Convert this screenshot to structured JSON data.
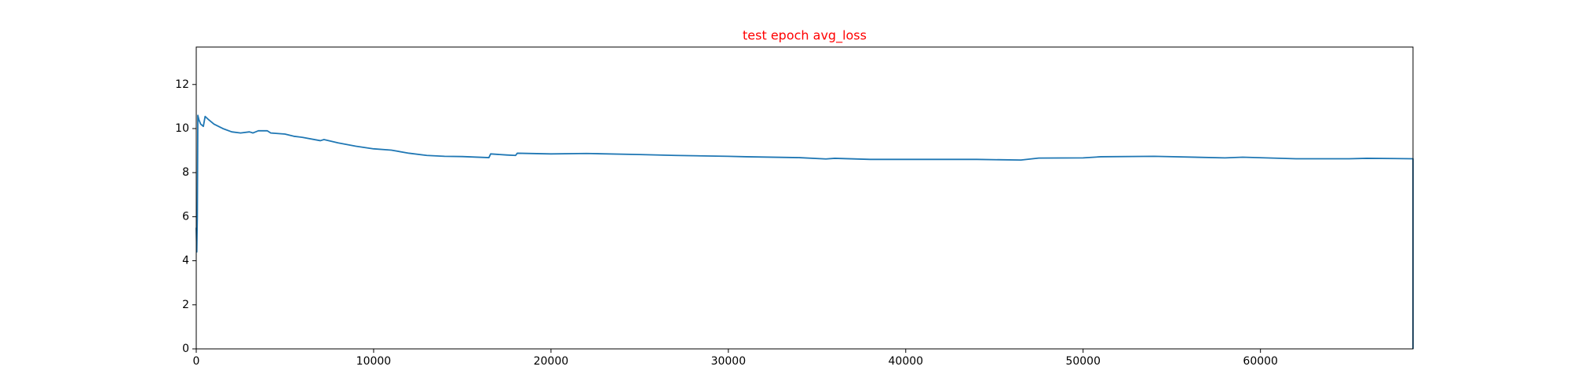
{
  "chart_data": {
    "type": "line",
    "title": "test epoch avg_loss",
    "title_color": "#ff0000",
    "color": "#1f77b4",
    "x": [
      0,
      30,
      60,
      90,
      150,
      250,
      400,
      500,
      700,
      1000,
      1500,
      2000,
      2500,
      3000,
      3200,
      3500,
      4000,
      4200,
      5000,
      5500,
      6000,
      7000,
      7200,
      8000,
      9000,
      10000,
      11000,
      12000,
      13000,
      14000,
      15000,
      16500,
      16600,
      17500,
      18000,
      18100,
      20000,
      22000,
      25000,
      27000,
      30000,
      31000,
      34000,
      35500,
      36000,
      38000,
      40000,
      42000,
      44000,
      46500,
      47500,
      50000,
      51000,
      54000,
      58000,
      59000,
      62000,
      65000,
      66000,
      68600,
      68600
    ],
    "values": [
      5.5,
      4.4,
      6.0,
      10.6,
      10.4,
      10.2,
      10.1,
      10.55,
      10.4,
      10.2,
      10.0,
      9.85,
      9.8,
      9.85,
      9.8,
      9.9,
      9.9,
      9.8,
      9.75,
      9.65,
      9.6,
      9.45,
      9.5,
      9.35,
      9.2,
      9.08,
      9.02,
      8.88,
      8.78,
      8.74,
      8.73,
      8.68,
      8.85,
      8.8,
      8.78,
      8.88,
      8.85,
      8.87,
      8.82,
      8.78,
      8.74,
      8.72,
      8.68,
      8.62,
      8.65,
      8.6,
      8.6,
      8.6,
      8.6,
      8.57,
      8.66,
      8.67,
      8.72,
      8.74,
      8.67,
      8.7,
      8.63,
      8.63,
      8.65,
      8.63,
      0
    ],
    "xlim": [
      0,
      68600
    ],
    "ylim": [
      0,
      13.7
    ],
    "xticks": [
      0,
      10000,
      20000,
      30000,
      40000,
      50000,
      60000
    ],
    "yticks": [
      0,
      2,
      4,
      6,
      8,
      10,
      12
    ]
  }
}
